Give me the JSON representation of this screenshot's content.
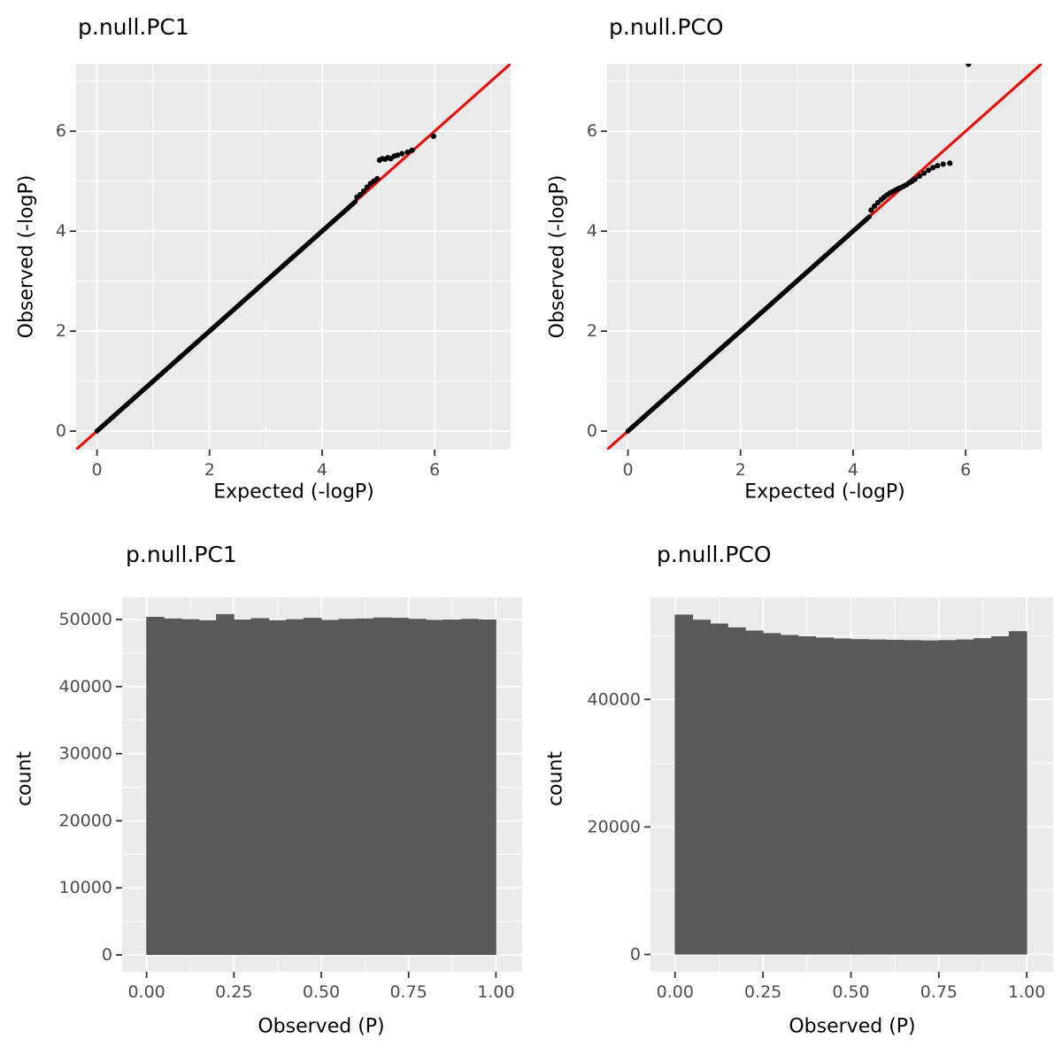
{
  "colors": {
    "panel_bg": "#EBEBEB",
    "grid": "#FFFFFF",
    "bar": "#595959",
    "point": "#000000",
    "red": "#FF0000",
    "tick": "#333333",
    "text": "#4D4D4D",
    "title": "#000000"
  },
  "chart_data": [
    {
      "id": "qq-pc1",
      "type": "scatter",
      "title": "p.null.PC1",
      "xlabel": "Expected (-logP)",
      "ylabel": "Observed (-logP)",
      "xlim": [
        -0.37,
        7.35
      ],
      "ylim": [
        -0.37,
        7.35
      ],
      "xticks": {
        "values": [
          0,
          2,
          4,
          6
        ],
        "labels": [
          "0",
          "2",
          "4",
          "6"
        ]
      },
      "yticks": {
        "values": [
          0,
          2,
          4,
          6
        ],
        "labels": [
          "0",
          "2",
          "4",
          "6"
        ]
      },
      "minor_xticks": [
        1,
        3,
        5,
        7
      ],
      "minor_yticks": [
        1,
        3,
        5,
        7
      ],
      "grid": true,
      "legend": "none",
      "ref_line": {
        "type": "identity",
        "color": "#FF0000"
      },
      "diagonal_run": {
        "from": 0,
        "to": 4.6,
        "step": 0.03
      },
      "tail_points": [
        [
          4.62,
          4.68
        ],
        [
          4.68,
          4.73
        ],
        [
          4.74,
          4.8
        ],
        [
          4.8,
          4.88
        ],
        [
          4.86,
          4.95
        ],
        [
          4.92,
          5.0
        ],
        [
          4.98,
          5.05
        ],
        [
          5.02,
          5.42
        ],
        [
          5.07,
          5.45
        ],
        [
          5.12,
          5.44
        ],
        [
          5.17,
          5.47
        ],
        [
          5.22,
          5.45
        ],
        [
          5.28,
          5.5
        ],
        [
          5.34,
          5.52
        ],
        [
          5.42,
          5.55
        ],
        [
          5.52,
          5.58
        ],
        [
          5.6,
          5.62
        ],
        [
          5.98,
          5.9
        ]
      ]
    },
    {
      "id": "qq-pco",
      "type": "scatter",
      "title": "p.null.PCO",
      "xlabel": "Expected (-logP)",
      "ylabel": "Observed (-logP)",
      "xlim": [
        -0.37,
        7.35
      ],
      "ylim": [
        -0.37,
        7.35
      ],
      "xticks": {
        "values": [
          0,
          2,
          4,
          6
        ],
        "labels": [
          "0",
          "2",
          "4",
          "6"
        ]
      },
      "yticks": {
        "values": [
          0,
          2,
          4,
          6
        ],
        "labels": [
          "0",
          "2",
          "4",
          "6"
        ]
      },
      "minor_xticks": [
        1,
        3,
        5,
        7
      ],
      "minor_yticks": [
        1,
        3,
        5,
        7
      ],
      "grid": true,
      "legend": "none",
      "ref_line": {
        "type": "identity",
        "color": "#FF0000"
      },
      "diagonal_run": {
        "from": 0,
        "to": 4.3,
        "step": 0.03
      },
      "tail_points": [
        [
          4.32,
          4.42
        ],
        [
          4.38,
          4.5
        ],
        [
          4.44,
          4.57
        ],
        [
          4.5,
          4.63
        ],
        [
          4.55,
          4.68
        ],
        [
          4.6,
          4.72
        ],
        [
          4.65,
          4.76
        ],
        [
          4.7,
          4.79
        ],
        [
          4.75,
          4.82
        ],
        [
          4.8,
          4.85
        ],
        [
          4.85,
          4.87
        ],
        [
          4.9,
          4.9
        ],
        [
          4.95,
          4.93
        ],
        [
          5.0,
          4.97
        ],
        [
          5.05,
          5.0
        ],
        [
          5.1,
          5.04
        ],
        [
          5.18,
          5.1
        ],
        [
          5.26,
          5.16
        ],
        [
          5.34,
          5.22
        ],
        [
          5.42,
          5.27
        ],
        [
          5.5,
          5.31
        ],
        [
          5.6,
          5.34
        ],
        [
          5.72,
          5.36
        ],
        [
          6.05,
          7.34
        ]
      ]
    },
    {
      "id": "hist-pc1",
      "type": "bar",
      "title": "p.null.PC1",
      "xlabel": "Observed (P)",
      "ylabel": "count",
      "bin_start": 0,
      "bin_width": 0.05,
      "values": [
        50400,
        50150,
        50050,
        49900,
        50800,
        50000,
        50200,
        49900,
        50050,
        50250,
        49950,
        50100,
        50150,
        50300,
        50250,
        50100,
        49950,
        50000,
        50100,
        50000
      ],
      "xlim": [
        -0.07,
        1.075
      ],
      "ylim": [
        -2500,
        53300
      ],
      "xticks": {
        "values": [
          0,
          0.25,
          0.5,
          0.75,
          1
        ],
        "labels": [
          "0.00",
          "0.25",
          "0.50",
          "0.75",
          "1.00"
        ]
      },
      "yticks": {
        "values": [
          0,
          10000,
          20000,
          30000,
          40000,
          50000
        ],
        "labels": [
          "0",
          "10000",
          "20000",
          "30000",
          "40000",
          "50000"
        ]
      },
      "minor_xticks": [
        0.125,
        0.375,
        0.625,
        0.875
      ],
      "minor_yticks": [
        5000,
        15000,
        25000,
        35000,
        45000
      ],
      "grid": true,
      "legend": "none"
    },
    {
      "id": "hist-pco",
      "type": "bar",
      "title": "p.null.PCO",
      "xlabel": "Observed (P)",
      "ylabel": "count",
      "bin_start": 0,
      "bin_width": 0.05,
      "values": [
        53300,
        52500,
        51900,
        51300,
        50800,
        50400,
        50100,
        49900,
        49700,
        49550,
        49450,
        49400,
        49350,
        49300,
        49250,
        49300,
        49400,
        49600,
        49900,
        50700
      ],
      "xlim": [
        -0.07,
        1.075
      ],
      "ylim": [
        -2700,
        56000
      ],
      "xticks": {
        "values": [
          0,
          0.25,
          0.5,
          0.75,
          1
        ],
        "labels": [
          "0.00",
          "0.25",
          "0.50",
          "0.75",
          "1.00"
        ]
      },
      "yticks": {
        "values": [
          0,
          20000,
          40000
        ],
        "labels": [
          "0",
          "20000",
          "40000"
        ]
      },
      "minor_xticks": [
        0.125,
        0.375,
        0.625,
        0.875
      ],
      "minor_yticks": [
        10000,
        30000,
        50000
      ],
      "grid": true,
      "legend": "none"
    }
  ]
}
